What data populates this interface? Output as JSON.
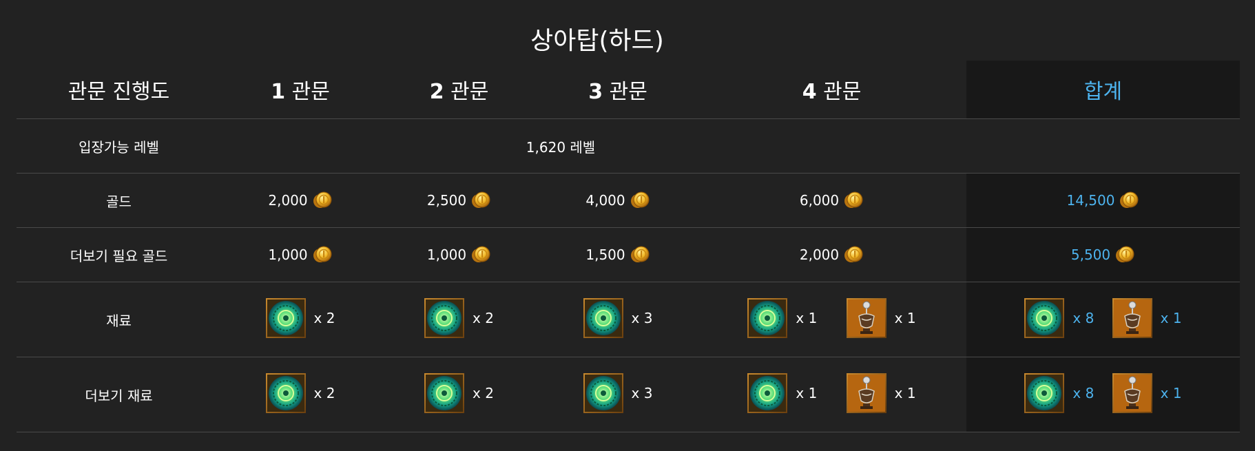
{
  "title": "상아탑(하드)",
  "header": {
    "progress_label": "관문 진행도",
    "gate_suffix": "관문",
    "gates": [
      "1",
      "2",
      "3",
      "4"
    ],
    "total_label": "합계"
  },
  "rows": {
    "entry_level": {
      "label": "입장가능 레벨",
      "value": "1,620 레벨"
    },
    "gold": {
      "label": "골드",
      "values": [
        "2,000",
        "2,500",
        "4,000",
        "6,000"
      ],
      "total": "14,500"
    },
    "more_gold": {
      "label": "더보기 필요 골드",
      "values": [
        "1,000",
        "1,000",
        "1,500",
        "2,000"
      ],
      "total": "5,500"
    },
    "materials": {
      "label": "재료",
      "gate1": "x 2",
      "gate2": "x 2",
      "gate3": "x 3",
      "gate4_orb": "x 1",
      "gate4_lamp": "x 1",
      "total_orb": "x 8",
      "total_lamp": "x 1"
    },
    "more_materials": {
      "label": "더보기 재료",
      "gate1": "x 2",
      "gate2": "x 2",
      "gate3": "x 3",
      "gate4_orb": "x 1",
      "gate4_lamp": "x 1",
      "total_orb": "x 8",
      "total_lamp": "x 1"
    }
  },
  "icons": {
    "gold": "gold-coin-icon",
    "orb": "green-orb-icon",
    "lamp": "lamp-icon"
  },
  "colors": {
    "background": "#222222",
    "total_bg": "#181818",
    "accent": "#4db3ee",
    "divider": "#4a4a4a"
  }
}
